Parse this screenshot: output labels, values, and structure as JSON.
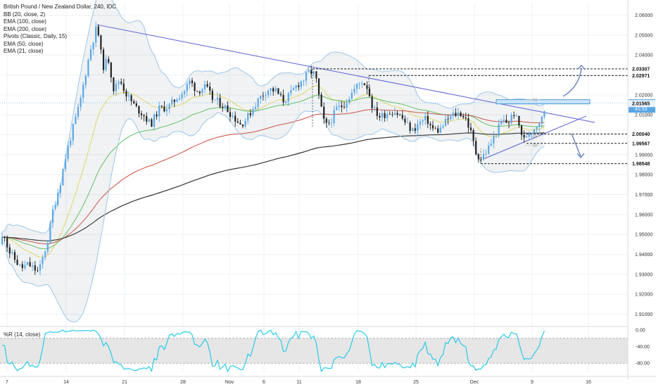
{
  "legend": {
    "title": "British Pound / New Zealand Dollar, 240, IDC",
    "indicators": [
      "BB (20, close, 2)",
      "EMA (100, close)",
      "EMA (200, close)",
      "Pivots (Classic, Daily, 15)",
      "EMA (50, close)",
      "EMA (21, close)"
    ]
  },
  "wr_title": "%R (14, close)",
  "colors": {
    "up": "#5aa7e6",
    "down": "#222222",
    "bb": "#9ec6ea",
    "ema100": "#d24a3c",
    "ema200": "#333333",
    "ema50": "#5dc65d",
    "ema21": "#f0e060",
    "trendline": "#5b5fd3",
    "wr": "#29cbe6",
    "zone": "#cfe6f7"
  },
  "chart_data": {
    "type": "candlestick",
    "x_ticks": [
      "7",
      "14",
      "21",
      "28",
      "Nov",
      "6",
      "11",
      "18",
      "25",
      "Dec",
      "9",
      "16"
    ],
    "y_ticks": [
      "2.06000",
      "2.05000",
      "2.04000",
      "2.03000",
      "2.02000",
      "2.01000",
      "2.00000",
      "1.99000",
      "1.98000",
      "1.97000",
      "1.96000",
      "1.95000",
      "1.94000",
      "1.93000",
      "1.92000",
      "1.91000"
    ],
    "ylim": [
      1.9045,
      2.0648
    ],
    "price_labels": [
      {
        "value": "2.03307",
        "price": 2.03307
      },
      {
        "value": "2.02971",
        "price": 2.02971
      },
      {
        "value": "2.01605",
        "price": 2.01605,
        "sub": "41:53",
        "current": true
      },
      {
        "value": "2.01565",
        "price": 2.01565
      },
      {
        "value": "2.00040",
        "price": 2.0004
      },
      {
        "value": "1.99567",
        "price": 1.99567
      },
      {
        "value": "1.98548",
        "price": 1.98548
      }
    ],
    "pivot_labels": [
      {
        "text": "R1",
        "price": 2.0176
      },
      {
        "text": "S1",
        "price": 1.9993
      },
      {
        "text": "S2",
        "price": 1.9948
      }
    ],
    "wr_ticks": [
      "0.00",
      "-40.00",
      "-80.00"
    ],
    "wr_ylim": [
      -100,
      0
    ],
    "wr_band": [
      -20,
      -80
    ]
  }
}
